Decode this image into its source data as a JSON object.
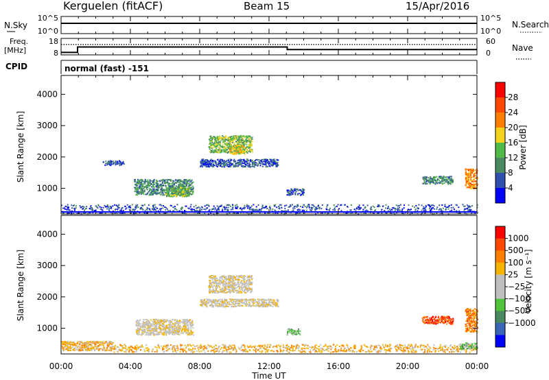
{
  "header": {
    "station": "Kerguelen (fitACF)",
    "beam": "Beam 15",
    "date": "15/Apr/2016"
  },
  "status_panels": {
    "nsky_label": "N.Sky",
    "nsky_ticks": [
      "10^5",
      "10^0"
    ],
    "nsearch_label": "N.Search",
    "nsearch_ticks": [
      "10^5",
      "10^0"
    ],
    "freq_label_1": "Freq.",
    "freq_label_2": "[MHz]",
    "freq_ticks": [
      "18",
      "8"
    ],
    "nave_label": "Nave",
    "nave_ticks": [
      "60",
      "0"
    ],
    "cpid_label": "CPID",
    "cpid_text": "normal (fast) -151",
    "freq_series": {
      "t_hours": [
        0,
        0.95,
        0.95,
        13.05,
        13.05,
        24
      ],
      "mhz": [
        9.5,
        9.5,
        12.8,
        12.8,
        11.2,
        11.2
      ]
    },
    "nave_level": 38,
    "nsky_level": 0.6
  },
  "chart_data": [
    {
      "type": "heatmap",
      "name": "power",
      "ylabel": "Slant Range [km]",
      "yticks": [
        "1000",
        "2000",
        "3000",
        "4000"
      ],
      "ylim": [
        180,
        4600
      ],
      "xlim": [
        0,
        24
      ],
      "colorbar_label": "Power [dB]",
      "colorbar_ticks": [
        "4",
        "8",
        "12",
        "16",
        "20",
        "24",
        "28"
      ],
      "colors": [
        "#0000ff",
        "#2f50ad",
        "#4b8a60",
        "#52b848",
        "#f2d21c",
        "#ff8000",
        "#ff4800",
        "#ff0000"
      ],
      "echo_regions": [
        {
          "t": [
            2.4,
            3.6
          ],
          "r": [
            1750,
            1900
          ],
          "c": 1
        },
        {
          "t": [
            4.2,
            7.6
          ],
          "r": [
            800,
            1300
          ],
          "c": 2
        },
        {
          "t": [
            6.0,
            7.4
          ],
          "r": [
            750,
            1050
          ],
          "c": 3
        },
        {
          "t": [
            8.5,
            11.0
          ],
          "r": [
            2150,
            2700
          ],
          "c": 3
        },
        {
          "t": [
            9.7,
            10.6
          ],
          "r": [
            2100,
            2400
          ],
          "c": 4
        },
        {
          "t": [
            8.0,
            12.5
          ],
          "r": [
            1700,
            1950
          ],
          "c": 1
        },
        {
          "t": [
            13.0,
            14.0
          ],
          "r": [
            800,
            1000
          ],
          "c": 1
        },
        {
          "t": [
            20.8,
            22.6
          ],
          "r": [
            1150,
            1400
          ],
          "c": 2
        },
        {
          "t": [
            23.3,
            24.0
          ],
          "r": [
            1000,
            1650
          ],
          "c": 5
        },
        {
          "t": [
            0.0,
            24.0
          ],
          "r": [
            200,
            500
          ],
          "c": 1
        }
      ]
    },
    {
      "type": "heatmap",
      "name": "velocity",
      "ylabel": "Slant Range [km]",
      "yticks": [
        "1000",
        "2000",
        "3000",
        "4000"
      ],
      "ylim": [
        180,
        4600
      ],
      "xlim": [
        0,
        24
      ],
      "xlabel": "Time UT",
      "xticks": [
        "00:00",
        "04:00",
        "08:00",
        "12:00",
        "16:00",
        "20:00",
        "00:00"
      ],
      "colorbar_label": "Velocity [m s⁻¹]",
      "colorbar_ticks": [
        "1000",
        "500",
        "100",
        "25",
        "−25",
        "−100",
        "−500",
        "−1000"
      ],
      "colors": [
        "#ff0000",
        "#ff4800",
        "#ff8000",
        "#f4b400",
        "#c0c0c0",
        "#c0c0c0",
        "#52c43c",
        "#4b8a60",
        "#3a64b4",
        "#0000ff"
      ],
      "echo_regions": [
        {
          "t": [
            4.3,
            7.6
          ],
          "r": [
            800,
            1300
          ],
          "c": 4
        },
        {
          "t": [
            8.5,
            11.0
          ],
          "r": [
            2150,
            2700
          ],
          "c": 4
        },
        {
          "t": [
            8.0,
            12.5
          ],
          "r": [
            1700,
            1950
          ],
          "c": 4
        },
        {
          "t": [
            13.0,
            13.8
          ],
          "r": [
            800,
            1000
          ],
          "c": 6
        },
        {
          "t": [
            20.8,
            22.6
          ],
          "r": [
            1150,
            1400
          ],
          "c": 1
        },
        {
          "t": [
            23.3,
            24.0
          ],
          "r": [
            900,
            1650
          ],
          "c": 2
        },
        {
          "t": [
            0.0,
            3.0
          ],
          "r": [
            300,
            600
          ],
          "c": 3
        },
        {
          "t": [
            3.0,
            24.0
          ],
          "r": [
            250,
            500
          ],
          "c": 3
        },
        {
          "t": [
            23.0,
            24.0
          ],
          "r": [
            350,
            550
          ],
          "c": 6
        }
      ]
    }
  ]
}
